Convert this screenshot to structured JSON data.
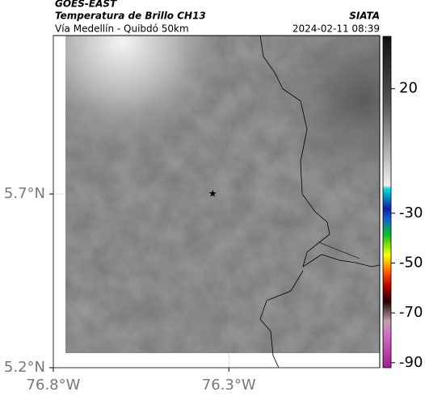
{
  "header": {
    "title": "GOES-EAST",
    "subtitle": "Temperatura de Brillo CH13",
    "source": "SIATA",
    "route": "Vía Medellín - Quibdó 50km",
    "timestamp": "2024-02-11 08:39"
  },
  "map": {
    "xlim": [
      -76.8,
      -75.87
    ],
    "ylim": [
      5.2,
      6.156
    ],
    "xticks": [
      {
        "value": -76.8,
        "label": "76.8°W"
      },
      {
        "value": -76.3,
        "label": "76.3°W"
      }
    ],
    "yticks": [
      {
        "value": 5.2,
        "label": "5.2°N"
      },
      {
        "value": 5.7,
        "label": "5.7°N"
      }
    ],
    "grid": true,
    "marker": {
      "lon": -76.346,
      "lat": 5.7
    }
  },
  "colorbar": {
    "clim": [
      -92,
      41
    ],
    "ticks": [
      20,
      -30,
      -50,
      -70,
      -90
    ]
  }
}
